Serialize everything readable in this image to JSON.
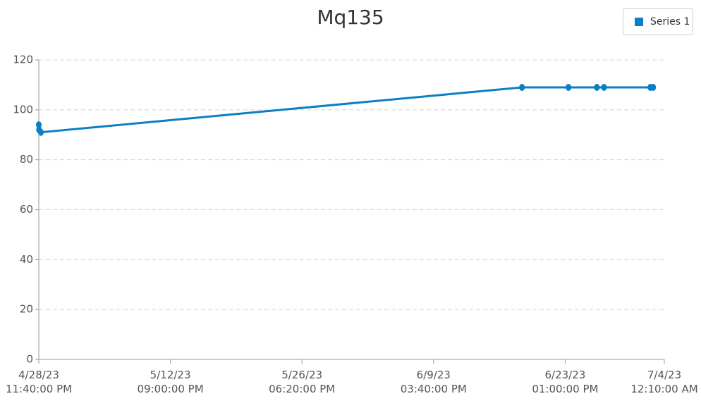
{
  "chart_data": {
    "type": "line",
    "title": "Mq135",
    "x": [
      "2023-04-28T23:40",
      "2023-04-29T00:10",
      "2023-04-29T05:00",
      "2023-06-18T23:40",
      "2023-06-23T21:20",
      "2023-06-26T21:20",
      "2023-06-27T15:20",
      "2023-07-02T12:50",
      "2023-07-02T19:50"
    ],
    "series": [
      {
        "name": "Series 1",
        "color": "#0a7fc1",
        "values": [
          94,
          92,
          91,
          109,
          109,
          109,
          109,
          109,
          109
        ]
      }
    ],
    "xlim": [
      "2023-04-28T23:40",
      "2023-07-04T00:10"
    ],
    "xticks": [
      {
        "value": "2023-04-28T23:40",
        "label": "4/28/23\n11:40:00 PM"
      },
      {
        "value": "2023-05-12T21:00",
        "label": "5/12/23\n09:00:00 PM"
      },
      {
        "value": "2023-05-26T18:20",
        "label": "5/26/23\n06:20:00 PM"
      },
      {
        "value": "2023-06-09T15:40",
        "label": "6/9/23\n03:40:00 PM"
      },
      {
        "value": "2023-06-23T13:00",
        "label": "6/23/23\n01:00:00 PM"
      },
      {
        "value": "2023-07-04T00:10",
        "label": "7/4/23\n12:10:00 AM"
      }
    ],
    "ylim": [
      0,
      120
    ],
    "yticks": [
      0,
      20,
      40,
      60,
      80,
      100,
      120
    ],
    "grid": true,
    "legend": "top-right"
  }
}
